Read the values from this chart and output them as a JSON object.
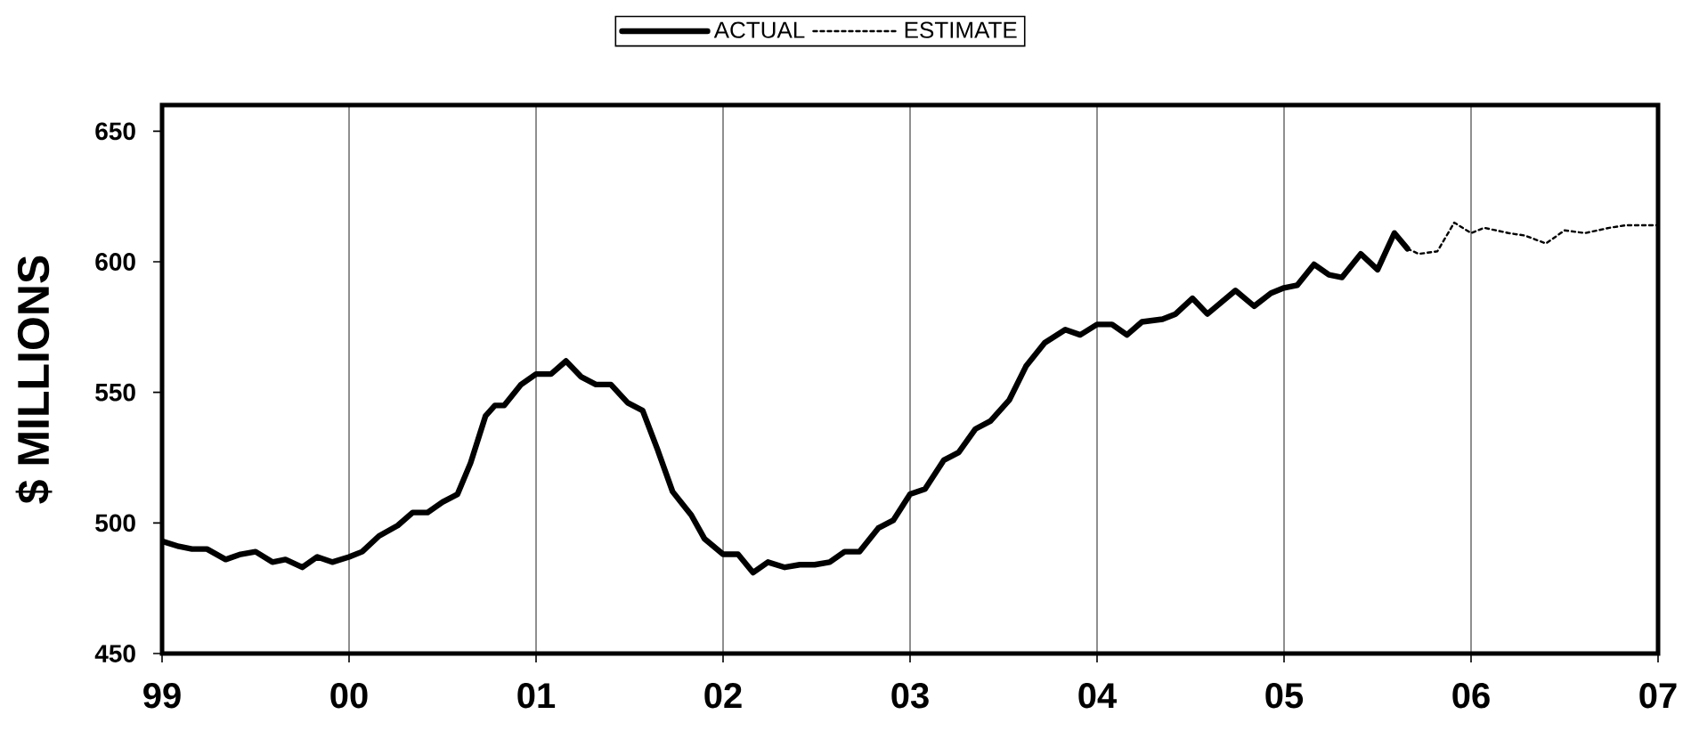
{
  "chart_data": {
    "type": "line",
    "ylabel": "$ MILLIONS",
    "xlim": [
      1999,
      2007
    ],
    "ylim": [
      450,
      660
    ],
    "xticks": [
      {
        "value": 1999,
        "label": "99"
      },
      {
        "value": 2000,
        "label": "00"
      },
      {
        "value": 2001,
        "label": "01"
      },
      {
        "value": 2002,
        "label": "02"
      },
      {
        "value": 2003,
        "label": "03"
      },
      {
        "value": 2004,
        "label": "04"
      },
      {
        "value": 2005,
        "label": "05"
      },
      {
        "value": 2006,
        "label": "06"
      },
      {
        "value": 2007,
        "label": "07"
      }
    ],
    "yticks": [
      450,
      500,
      550,
      600,
      650
    ],
    "grid": "x",
    "legend": "top",
    "series": [
      {
        "name": "ACTUAL",
        "color": "#000000",
        "line_style": "solid",
        "x": [
          1999.0,
          1999.09,
          1999.16,
          1999.24,
          1999.34,
          1999.42,
          1999.5,
          1999.59,
          1999.66,
          1999.75,
          1999.83,
          1999.91,
          2000.0,
          2000.07,
          2000.16,
          2000.26,
          2000.34,
          2000.42,
          2000.5,
          2000.58,
          2000.65,
          2000.73,
          2000.78,
          2000.83,
          2000.92,
          2001.0,
          2001.08,
          2001.16,
          2001.24,
          2001.32,
          2001.4,
          2001.49,
          2001.57,
          2001.65,
          2001.73,
          2001.83,
          2001.9,
          2002.0,
          2002.08,
          2002.16,
          2002.24,
          2002.33,
          2002.41,
          2002.49,
          2002.57,
          2002.65,
          2002.73,
          2002.83,
          2002.91,
          2003.0,
          2003.08,
          2003.18,
          2003.26,
          2003.35,
          2003.43,
          2003.53,
          2003.62,
          2003.72,
          2003.83,
          2003.91,
          2004.0,
          2004.08,
          2004.16,
          2004.24,
          2004.35,
          2004.42,
          2004.51,
          2004.59,
          2004.74,
          2004.84,
          2004.93,
          2005.0,
          2005.07,
          2005.16,
          2005.24,
          2005.31,
          2005.41,
          2005.5,
          2005.59,
          2005.66
        ],
        "values": [
          493,
          491,
          490,
          490,
          486,
          488,
          489,
          485,
          486,
          483,
          487,
          485,
          487,
          489,
          495,
          499,
          504,
          504,
          508,
          511,
          523,
          541,
          545,
          545,
          553,
          557,
          557,
          562,
          556,
          553,
          553,
          546,
          543,
          528,
          512,
          503,
          494,
          488,
          488,
          481,
          485,
          483,
          484,
          484,
          485,
          489,
          489,
          498,
          501,
          511,
          513,
          524,
          527,
          536,
          539,
          547,
          560,
          569,
          574,
          572,
          576,
          576,
          572,
          577,
          578,
          580,
          586,
          580,
          589,
          583,
          588,
          590,
          591,
          599,
          595,
          594,
          603,
          597,
          611,
          605
        ]
      },
      {
        "name": "ESTIMATE",
        "color": "#000000",
        "line_style": "dotted",
        "x": [
          2005.66,
          2005.72,
          2005.82,
          2005.91,
          2006.0,
          2006.07,
          2006.2,
          2006.29,
          2006.4,
          2006.5,
          2006.61,
          2006.74,
          2006.83,
          2007.0
        ],
        "values": [
          605,
          603,
          604,
          615,
          611,
          613,
          611,
          610,
          607,
          612,
          611,
          613,
          614,
          614
        ]
      }
    ]
  }
}
